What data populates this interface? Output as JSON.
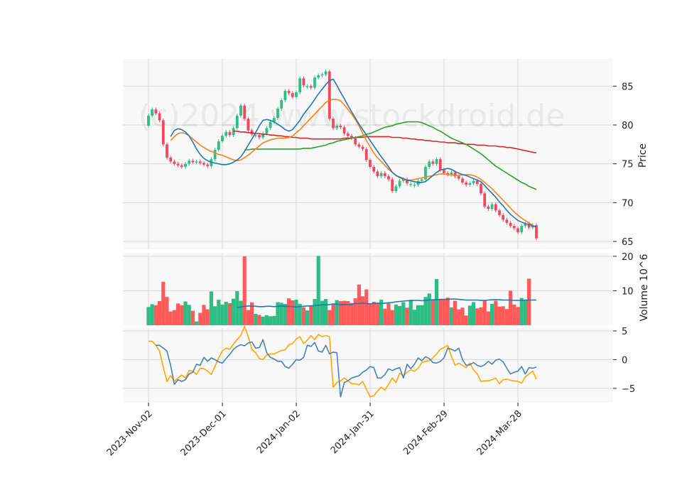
{
  "chart_data": {
    "type": "candlestick",
    "watermark": "(c)2024 www.stockdroid.de",
    "colors": {
      "up": "#2ebd85",
      "down": "#f6465d",
      "up_vol": "#2ebd85",
      "down_vol": "#ff5a5a",
      "sma10": "#1f77b4",
      "sma20": "#ff7f0e",
      "sma50": "#2ca02c",
      "sma200": "#d62728",
      "vol_ma": "#1f77b4",
      "osc1": "#4682b4",
      "osc2": "#ffa500",
      "grid": "#d9d9d9",
      "panel_bg": "#f8f8f8"
    },
    "x_tick_labels": [
      "2023-Nov-02",
      "2023-Dec-01",
      "2024-Jan-02",
      "2024-Jan-31",
      "2024-Feb-29",
      "2024-Mar-28"
    ],
    "x_tick_index": [
      0,
      20,
      40,
      60,
      80,
      100
    ],
    "price_panel": {
      "ylabel": "Price",
      "ylim": [
        64,
        88.5
      ],
      "yticks": [
        65,
        70,
        75,
        80,
        85
      ],
      "closes": [
        81.2,
        82.0,
        81.5,
        80.6,
        77.5,
        75.8,
        75.3,
        75.0,
        74.8,
        74.6,
        75.0,
        75.4,
        75.2,
        75.3,
        75.1,
        74.9,
        74.7,
        75.6,
        76.8,
        77.9,
        78.6,
        79.1,
        78.7,
        79.6,
        81.2,
        82.5,
        80.8,
        79.3,
        78.8,
        78.7,
        78.4,
        78.9,
        79.6,
        80.4,
        80.9,
        82.1,
        83.2,
        84.4,
        84.1,
        83.6,
        84.2,
        86.0,
        85.1,
        85.0,
        84.8,
        86.1,
        86.4,
        86.5,
        86.9,
        80.8,
        79.6,
        79.9,
        79.7,
        78.9,
        78.6,
        78.3,
        77.5,
        77.2,
        76.9,
        75.5,
        74.6,
        74.0,
        73.4,
        73.8,
        73.4,
        73.0,
        71.5,
        72.1,
        72.8,
        73.0,
        72.5,
        72.4,
        72.3,
        72.8,
        73.0,
        74.6,
        75.3,
        75.0,
        75.6,
        74.2,
        73.8,
        73.6,
        73.9,
        73.4,
        73.1,
        72.6,
        72.3,
        72.5,
        72.8,
        72.4,
        71.2,
        69.5,
        69.2,
        69.8,
        69.0,
        68.4,
        67.8,
        67.4,
        67.0,
        66.7,
        66.2,
        67.0,
        67.3,
        66.8,
        67.1,
        65.4
      ],
      "sma10": [
        78.5,
        79.3,
        79.5,
        79.4,
        79.1,
        78.6,
        77.8,
        76.9,
        76.2,
        75.7,
        75.4,
        75.2,
        75.1,
        75.0,
        74.9,
        74.9,
        75.0,
        75.2,
        75.5,
        75.9,
        76.6,
        77.4,
        78.2,
        79.0,
        79.9,
        80.6,
        80.7,
        80.6,
        80.4,
        80.1,
        79.8,
        79.4,
        79.2,
        79.4,
        80.0,
        80.6,
        81.4,
        82.0,
        82.6,
        83.3,
        84.0,
        84.6,
        85.2,
        85.7,
        85.9,
        85.1,
        84.2,
        83.4,
        82.5,
        81.7,
        80.9,
        80.1,
        79.4,
        78.7,
        78.0,
        77.3,
        76.6,
        75.9,
        75.3,
        74.6,
        73.9,
        73.5,
        73.3,
        73.1,
        72.9,
        72.8,
        72.7,
        72.6,
        72.6,
        72.7,
        73.1,
        73.5,
        73.9,
        74.2,
        74.3,
        74.4,
        74.3,
        74.0,
        73.8,
        73.6,
        73.5,
        73.3,
        73.1,
        72.9,
        72.7,
        72.2,
        71.7,
        71.2,
        70.7,
        70.1,
        69.6,
        69.0,
        68.5,
        68.1,
        67.7,
        67.5,
        67.3,
        67.2,
        67.0,
        66.9
      ],
      "sma20": [
        78.0,
        78.5,
        78.9,
        79.0,
        78.9,
        78.6,
        78.2,
        77.8,
        77.4,
        77.1,
        76.8,
        76.6,
        76.4,
        76.2,
        76.1,
        75.9,
        75.7,
        75.5,
        75.4,
        75.5,
        75.8,
        76.1,
        76.5,
        76.9,
        77.3,
        77.7,
        77.9,
        78.1,
        78.2,
        78.3,
        78.3,
        78.3,
        78.4,
        78.6,
        79.0,
        79.4,
        79.9,
        80.4,
        80.9,
        81.4,
        81.9,
        82.4,
        82.9,
        83.2,
        83.3,
        83.3,
        83.1,
        82.6,
        82.0,
        81.4,
        80.7,
        79.9,
        78.9,
        78.0,
        77.2,
        76.4,
        75.8,
        75.3,
        74.8,
        74.3,
        73.9,
        73.5,
        73.2,
        73.0,
        72.9,
        72.9,
        73.0,
        73.1,
        73.2,
        73.3,
        73.4,
        73.5,
        73.6,
        73.7,
        73.7,
        73.6,
        73.6,
        73.5,
        73.5,
        73.6,
        73.6,
        73.6,
        73.5,
        73.3,
        73.0,
        72.6,
        72.2,
        71.8,
        71.3,
        70.8,
        70.3,
        69.8,
        69.3,
        68.8,
        68.4,
        68.0,
        67.7,
        67.4,
        67.1,
        66.8
      ],
      "sma50": [
        76.8,
        76.8,
        76.9,
        76.9,
        76.9,
        76.9,
        76.9,
        76.9,
        76.9,
        76.9,
        76.9,
        76.9,
        76.9,
        76.9,
        76.9,
        76.9,
        77.0,
        77.0,
        77.0,
        77.1,
        77.2,
        77.3,
        77.4,
        77.6,
        77.7,
        77.9,
        78.0,
        78.1,
        78.2,
        78.3,
        78.4,
        78.5,
        78.6,
        78.8,
        78.9,
        79.1,
        79.3,
        79.5,
        79.7,
        79.8,
        79.9,
        80.1,
        80.2,
        80.3,
        80.4,
        80.4,
        80.4,
        80.4,
        80.3,
        80.1,
        79.9,
        79.7,
        79.4,
        79.2,
        78.9,
        78.6,
        78.3,
        78.1,
        77.9,
        77.7,
        77.5,
        77.2,
        76.9,
        76.6,
        76.3,
        75.9,
        75.5,
        75.1,
        74.7,
        74.4,
        74.1,
        73.8,
        73.5,
        73.2,
        72.9,
        72.6,
        72.4,
        72.1,
        71.9,
        71.7
      ],
      "sma200": [
        79.2,
        79.2,
        79.1,
        79.1,
        79.0,
        79.0,
        78.9,
        78.9,
        78.8,
        78.8,
        78.7,
        78.7,
        78.6,
        78.6,
        78.5,
        78.5,
        78.4,
        78.4,
        78.3,
        78.3,
        78.3,
        78.2,
        78.2,
        78.2,
        78.2,
        78.2,
        78.2,
        78.2,
        78.2,
        78.2,
        78.3,
        78.3,
        78.3,
        78.4,
        78.4,
        78.4,
        78.5,
        78.5,
        78.5,
        78.5,
        78.5,
        78.5,
        78.5,
        78.4,
        78.4,
        78.4,
        78.3,
        78.3,
        78.2,
        78.2,
        78.1,
        78.1,
        78.0,
        78.0,
        77.9,
        77.9,
        77.8,
        77.8,
        77.7,
        77.7,
        77.7,
        77.6,
        77.6,
        77.5,
        77.5,
        77.5,
        77.4,
        77.4,
        77.4,
        77.3,
        77.3,
        77.3,
        77.2,
        77.2,
        77.1,
        77.1,
        77.0,
        76.9,
        76.8,
        76.7,
        76.6,
        76.5,
        76.4
      ]
    },
    "volume_panel": {
      "ylabel": "Volume  10^6",
      "ylim": [
        0,
        21
      ],
      "yticks": [
        10,
        20
      ],
      "values": [
        5.3,
        6.1,
        5.8,
        7.0,
        12.6,
        8.2,
        4.0,
        4.4,
        6.3,
        5.8,
        6.9,
        5.9,
        4.2,
        1.1,
        3.6,
        5.9,
        4.6,
        9.8,
        5.5,
        7.4,
        6.0,
        6.8,
        6.4,
        7.7,
        9.9,
        7.1,
        20.0,
        4.4,
        6.6,
        3.3,
        3.0,
        2.5,
        2.9,
        2.6,
        2.7,
        6.7,
        6.5,
        6.2,
        7.8,
        7.2,
        7.4,
        6.2,
        5.2,
        4.3,
        5.8,
        7.6,
        20.1,
        7.1,
        7.6,
        4.4,
        6.1,
        7.3,
        7.0,
        7.1,
        7.0,
        6.4,
        7.8,
        11.8,
        8.4,
        10.4,
        6.2,
        6.8,
        6.2,
        7.4,
        4.8,
        6.3,
        4.4,
        6.0,
        5.6,
        6.7,
        5.1,
        7.4,
        4.5,
        5.8,
        5.8,
        8.2,
        9.2,
        7.5,
        13.4,
        7.5,
        7.6,
        8.0,
        5.2,
        7.1,
        4.6,
        5.1,
        2.8,
        5.7,
        6.7,
        4.9,
        5.2,
        7.2,
        4.0,
        6.2,
        7.1,
        5.4,
        5.5,
        4.7,
        10.0,
        6.0,
        5.3,
        7.9,
        7.4,
        13.5
      ],
      "ma": [
        5.1,
        5.3,
        5.5,
        5.6,
        5.5,
        5.5,
        5.4,
        5.4,
        5.5,
        5.5,
        5.4,
        5.5,
        5.6,
        5.5,
        5.5,
        5.4,
        5.3,
        5.4,
        5.5,
        5.6,
        5.6,
        5.7,
        5.8,
        5.9,
        5.9,
        6.0,
        6.2,
        6.1,
        6.0,
        6.0,
        5.9,
        6.1,
        6.3,
        6.3,
        6.4,
        6.3,
        6.2,
        6.3,
        6.4,
        6.3,
        6.4,
        6.5,
        6.6,
        6.8,
        6.9,
        7.0,
        7.1,
        7.1,
        7.2,
        7.2,
        7.1,
        7.2,
        7.3,
        7.4,
        7.4,
        7.5,
        7.5,
        7.5,
        7.6,
        7.6,
        7.5,
        7.4,
        7.3,
        7.3,
        7.3,
        7.3,
        7.2,
        7.2,
        7.3,
        7.4,
        7.4,
        7.4,
        7.3,
        7.3,
        7.3,
        7.2,
        7.2,
        7.2,
        7.3,
        7.3,
        7.3,
        7.3
      ]
    },
    "oscillator_panel": {
      "ylim": [
        -7.5,
        5.5
      ],
      "yticks": [
        5,
        0,
        -5
      ],
      "series1": [
        2.5,
        2.5,
        2.0,
        1.5,
        -1.0,
        -4.3,
        -3.5,
        -3.8,
        -3.5,
        -2.5,
        -2.2,
        -0.8,
        -1.0,
        0.4,
        -0.3,
        0.3,
        0.0,
        -0.4,
        -0.6,
        0.2,
        0.9,
        1.8,
        2.3,
        2.6,
        2.4,
        2.9,
        3.1,
        2.0,
        2.1,
        3.5,
        1.2,
        0.4,
        0.1,
        -0.3,
        -0.3,
        -1.2,
        -1.5,
        -0.8,
        0.0,
        -0.1,
        0.4,
        2.5,
        2.3,
        3.0,
        1.5,
        1.3,
        2.5,
        1.0,
        1.3,
        1.2,
        -6.5,
        -4.0,
        -3.7,
        -3.2,
        -3.0,
        -2.8,
        -2.2,
        -1.8,
        -1.2,
        -1.4,
        -3.2,
        -3.2,
        -2.6,
        -1.6,
        -1.9,
        -1.6,
        -1.4,
        -3.2,
        -0.8,
        -1.6,
        -0.8,
        0.3,
        -0.2,
        0.5,
        0.2,
        -0.5,
        -0.6,
        -0.3,
        0.3,
        2.0,
        1.8,
        1.5,
        2.0,
        0.0,
        -1.0,
        -0.9,
        -0.5,
        -1.0,
        -1.2,
        -0.9,
        -0.3,
        -0.8,
        -0.1,
        0.1,
        -0.4,
        -1.5,
        -2.5,
        -2.2,
        -2.0,
        -1.2,
        -2.5,
        -1.4,
        -1.5,
        -1.3
      ],
      "series2": [
        3.2,
        3.2,
        2.5,
        1.5,
        -1.3,
        -3.8,
        -2.8,
        -3.8,
        -3.2,
        -2.7,
        -3.2,
        -1.9,
        -2.0,
        -2.6,
        -1.5,
        -1.6,
        -2.0,
        -2.6,
        -1.2,
        0.3,
        1.5,
        2.0,
        1.8,
        2.7,
        3.5,
        4.2,
        5.8,
        4.0,
        1.8,
        1.2,
        0.2,
        0.0,
        0.8,
        1.0,
        1.0,
        1.3,
        1.6,
        1.7,
        2.6,
        2.8,
        3.6,
        4.0,
        2.8,
        3.4,
        4.2,
        3.5,
        4.4,
        4.0,
        4.2,
        4.0,
        -4.8,
        -4.0,
        -3.7,
        -3.2,
        -3.7,
        -4.2,
        -4.2,
        -4.4,
        -3.8,
        -5.2,
        -6.5,
        -6.3,
        -5.5,
        -4.8,
        -5.3,
        -4.3,
        -3.2,
        -4.0,
        -2.4,
        -2.8,
        -2.2,
        -1.8,
        -2.0,
        -1.5,
        -0.5,
        -0.3,
        -0.2,
        0.3,
        1.0,
        1.8,
        2.1,
        2.5,
        0.6,
        -1.0,
        -0.6,
        -1.0,
        -1.4,
        -0.6,
        -1.8,
        -2.5,
        -3.8,
        -3.7,
        -3.7,
        -3.5,
        -3.2,
        -4.2,
        -3.5,
        -3.4,
        -3.6,
        -3.7,
        -3.8,
        -4.1,
        -3.0,
        -2.5,
        -2.0,
        -3.4
      ]
    }
  }
}
